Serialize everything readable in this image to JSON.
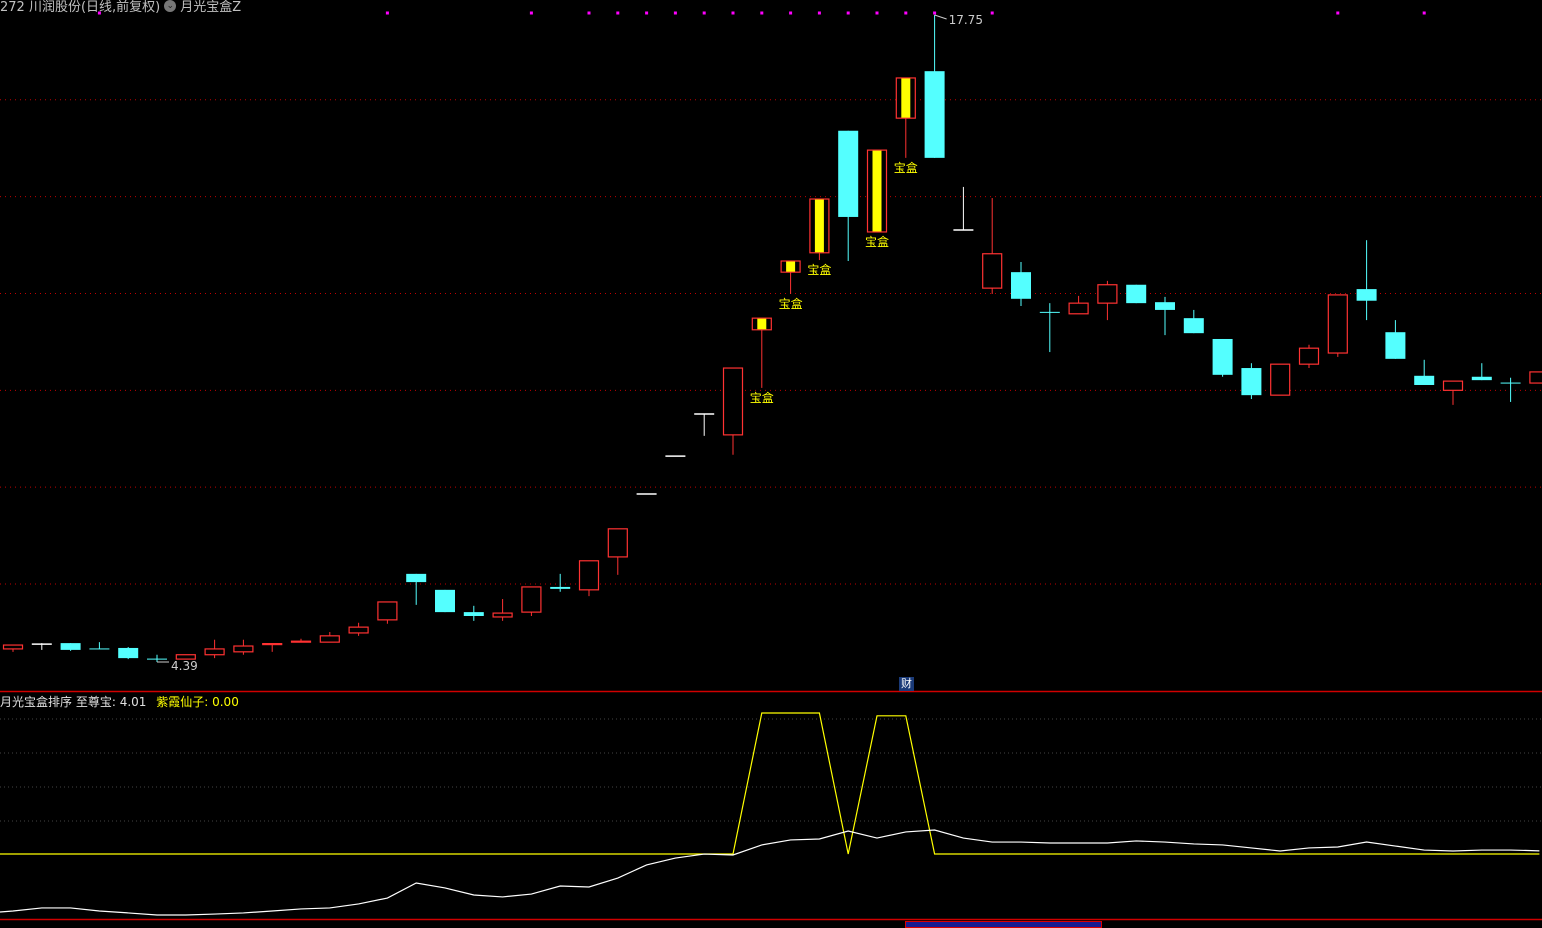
{
  "header": {
    "title": "272 川润股份(日线,前复权)",
    "indicator_name": "月光宝盒Z",
    "dropdown_icon": "chevron-down-circle-icon"
  },
  "indicator": {
    "name_label": "月光宝盒排序",
    "series1_label": "至尊宝: ",
    "series1_value": "4.01",
    "series2_label": "紫霞仙子: ",
    "series2_value": "0.00"
  },
  "badge": {
    "cai": "财"
  },
  "colors": {
    "up": "#ff3232",
    "down": "#54ffff",
    "flat": "#ffffff",
    "box": "#ffff00",
    "signal": "#ff00ff",
    "grid": "#c00000",
    "series1": "#ffffff",
    "series2": "#ffff00"
  },
  "chart_data": {
    "type": "candlestick",
    "ylim": [
      4.39,
      17.75
    ],
    "yticks": [
      6,
      8,
      10,
      12,
      14,
      16
    ],
    "grid": true,
    "annotations": {
      "high": "17.75",
      "low": "4.39",
      "box_label": "宝盒"
    },
    "ohlc": [
      [
        4.66,
        4.74,
        4.6,
        4.74,
        "up"
      ],
      [
        4.76,
        4.78,
        4.64,
        4.76,
        "flat"
      ],
      [
        4.78,
        4.78,
        4.62,
        4.64,
        "down"
      ],
      [
        4.67,
        4.8,
        4.66,
        4.66,
        "down"
      ],
      [
        4.68,
        4.7,
        4.45,
        4.47,
        "down"
      ],
      [
        4.46,
        4.54,
        4.39,
        4.45,
        "down"
      ],
      [
        4.45,
        4.54,
        4.45,
        4.54,
        "up"
      ],
      [
        4.54,
        4.85,
        4.47,
        4.66,
        "up"
      ],
      [
        4.6,
        4.85,
        4.54,
        4.72,
        "up"
      ],
      [
        4.76,
        4.77,
        4.6,
        4.77,
        "up"
      ],
      [
        4.8,
        4.87,
        4.8,
        4.82,
        "up"
      ],
      [
        4.8,
        5.01,
        4.8,
        4.93,
        "up"
      ],
      [
        4.99,
        5.2,
        4.93,
        5.11,
        "up"
      ],
      [
        5.26,
        5.63,
        5.18,
        5.63,
        "up"
      ],
      [
        6.21,
        6.21,
        5.57,
        6.04,
        "down"
      ],
      [
        5.88,
        5.88,
        5.42,
        5.42,
        "down"
      ],
      [
        5.42,
        5.55,
        5.24,
        5.34,
        "down"
      ],
      [
        5.32,
        5.69,
        5.24,
        5.4,
        "up"
      ],
      [
        5.42,
        5.94,
        5.34,
        5.94,
        "up"
      ],
      [
        5.94,
        6.21,
        5.84,
        5.9,
        "down"
      ],
      [
        5.88,
        6.48,
        5.75,
        6.48,
        "up"
      ],
      [
        6.56,
        7.14,
        6.19,
        7.14,
        "up"
      ],
      [
        7.86,
        7.86,
        7.86,
        7.86,
        "flat"
      ],
      [
        8.64,
        8.64,
        8.64,
        8.64,
        "flat"
      ],
      [
        9.51,
        9.51,
        9.06,
        9.51,
        "flat"
      ],
      [
        9.08,
        10.46,
        8.67,
        10.46,
        "up"
      ],
      [
        11.25,
        11.49,
        10.05,
        11.49,
        "box"
      ],
      [
        12.44,
        12.67,
        11.99,
        12.67,
        "box"
      ],
      [
        12.84,
        13.95,
        12.69,
        13.95,
        "box"
      ],
      [
        15.36,
        15.36,
        12.67,
        13.58,
        "down"
      ],
      [
        13.27,
        14.96,
        13.27,
        14.96,
        "box"
      ],
      [
        15.62,
        16.45,
        14.8,
        16.45,
        "box"
      ],
      [
        16.59,
        17.75,
        14.8,
        14.8,
        "down"
      ],
      [
        13.31,
        14.2,
        13.31,
        13.31,
        "flat"
      ],
      [
        12.11,
        13.97,
        11.99,
        12.82,
        "up"
      ],
      [
        12.44,
        12.65,
        11.74,
        11.89,
        "down"
      ],
      [
        11.62,
        11.8,
        10.79,
        11.6,
        "down"
      ],
      [
        11.58,
        11.95,
        11.58,
        11.8,
        "up"
      ],
      [
        11.8,
        12.26,
        11.45,
        12.18,
        "up"
      ],
      [
        12.18,
        12.18,
        11.8,
        11.8,
        "down"
      ],
      [
        11.82,
        11.93,
        11.14,
        11.66,
        "down"
      ],
      [
        11.49,
        11.66,
        11.18,
        11.18,
        "down"
      ],
      [
        11.06,
        11.06,
        10.28,
        10.32,
        "down"
      ],
      [
        10.46,
        10.56,
        9.82,
        9.9,
        "down"
      ],
      [
        9.9,
        10.54,
        9.9,
        10.54,
        "up"
      ],
      [
        10.54,
        10.94,
        10.46,
        10.87,
        "up"
      ],
      [
        10.77,
        11.97,
        10.69,
        11.97,
        "up"
      ],
      [
        12.09,
        13.1,
        11.45,
        11.85,
        "down"
      ],
      [
        11.2,
        11.45,
        10.65,
        10.65,
        "down"
      ],
      [
        10.3,
        10.63,
        10.11,
        10.11,
        "down"
      ],
      [
        10.0,
        10.19,
        9.7,
        10.19,
        "up"
      ],
      [
        10.28,
        10.56,
        10.21,
        10.21,
        "down"
      ],
      [
        10.16,
        10.26,
        9.76,
        10.15,
        "down"
      ],
      [
        10.15,
        10.38,
        10.15,
        10.38,
        "up"
      ]
    ],
    "signal_dots": [
      4,
      14,
      19,
      21,
      22,
      23,
      24,
      25,
      26,
      27,
      28,
      29,
      30,
      31,
      32,
      33,
      35,
      47,
      50
    ],
    "series1": [
      0.25,
      0.44,
      0.44,
      0.25,
      0.13,
      0,
      0,
      0.06,
      0.13,
      0.25,
      0.38,
      0.44,
      0.69,
      1.06,
      2.0,
      1.69,
      1.25,
      1.13,
      1.31,
      1.81,
      1.75,
      2.31,
      3.13,
      3.56,
      3.81,
      3.75,
      4.38,
      4.69,
      4.75,
      5.25,
      4.81,
      5.19,
      5.31,
      4.81,
      4.56,
      4.56,
      4.5,
      4.5,
      4.5,
      4.63,
      4.56,
      4.44,
      4.38,
      4.19,
      4.0,
      4.19,
      4.25,
      4.56,
      4.31,
      4.06,
      4.0,
      4.06,
      4.06,
      4.01
    ],
    "series2": [
      0,
      0,
      0,
      0,
      0,
      0,
      0,
      0,
      0,
      0,
      0,
      0,
      0,
      0,
      0,
      0,
      0,
      0,
      0,
      0,
      0,
      0,
      0,
      0,
      0,
      0,
      1,
      1,
      1,
      0,
      0.98,
      0.98,
      0,
      0,
      0,
      0,
      0,
      0,
      0,
      0,
      0,
      0,
      0,
      0,
      0,
      0,
      0,
      0,
      0,
      0,
      0,
      0,
      0,
      0
    ]
  }
}
